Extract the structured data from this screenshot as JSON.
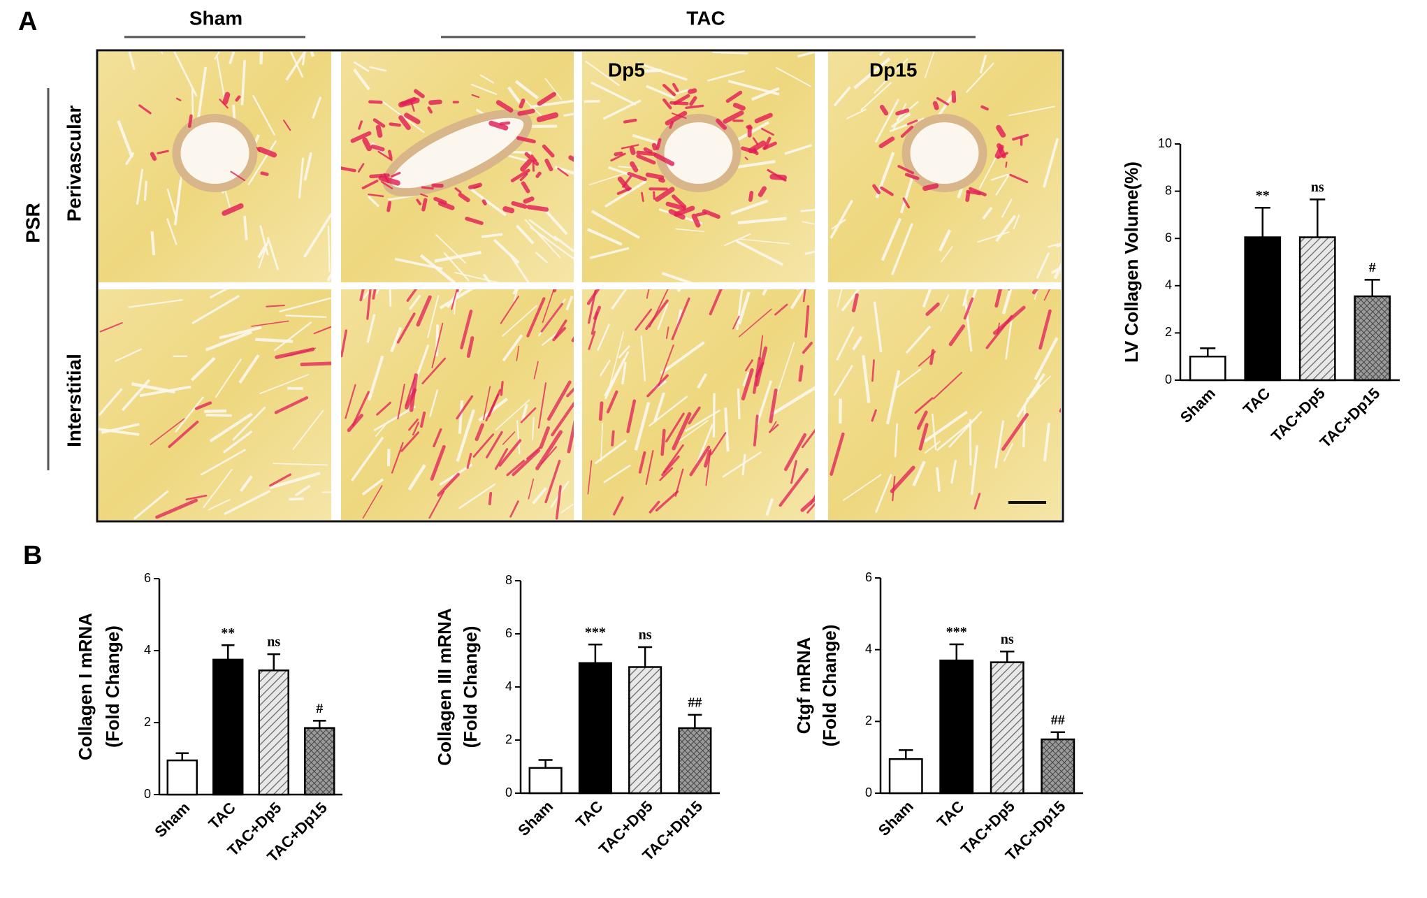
{
  "figure": {
    "panel_labels": [
      "A",
      "B"
    ],
    "group_labels": {
      "sham": "Sham",
      "tac": "TAC"
    },
    "image_labels": {
      "dp5": "Dp5",
      "dp15": "Dp15"
    },
    "stain": "PSR",
    "row_labels": [
      "Perivascular",
      "Interstitial"
    ]
  },
  "chart_data": [
    {
      "type": "bar",
      "ylabel": [
        "LV Collagen Volume(%)"
      ],
      "categories": [
        "Sham",
        "TAC",
        "TAC+Dp5",
        "TAC+Dp15"
      ],
      "values": [
        1.0,
        6.05,
        6.05,
        3.55
      ],
      "errors": [
        0.35,
        1.25,
        1.6,
        0.7
      ],
      "annotations": [
        null,
        "**",
        "ns",
        "#"
      ],
      "fills": [
        "white",
        "black",
        "hatch",
        "crosshatch"
      ],
      "ylim": [
        0,
        10
      ],
      "yticks": [
        0,
        2,
        4,
        6,
        8,
        10
      ]
    },
    {
      "type": "bar",
      "ylabel": [
        "Collagen I mRNA",
        "(Fold Change)"
      ],
      "categories": [
        "Sham",
        "TAC",
        "TAC+Dp5",
        "TAC+Dp15"
      ],
      "values": [
        0.95,
        3.75,
        3.45,
        1.85
      ],
      "errors": [
        0.2,
        0.4,
        0.45,
        0.2
      ],
      "annotations": [
        null,
        "**",
        "ns",
        "#"
      ],
      "fills": [
        "white",
        "black",
        "hatch",
        "crosshatch"
      ],
      "ylim": [
        0,
        6
      ],
      "yticks": [
        0,
        2,
        4,
        6
      ]
    },
    {
      "type": "bar",
      "ylabel": [
        "Collagen III mRNA",
        "(Fold Change)"
      ],
      "categories": [
        "Sham",
        "TAC",
        "TAC+Dp5",
        "TAC+Dp15"
      ],
      "values": [
        0.95,
        4.9,
        4.75,
        2.45
      ],
      "errors": [
        0.3,
        0.7,
        0.75,
        0.5
      ],
      "annotations": [
        null,
        "***",
        "ns",
        "##"
      ],
      "fills": [
        "white",
        "black",
        "hatch",
        "crosshatch"
      ],
      "ylim": [
        0,
        8
      ],
      "yticks": [
        0,
        2,
        4,
        6,
        8
      ]
    },
    {
      "type": "bar",
      "ylabel": [
        "Ctgf  mRNA",
        "(Fold Change)"
      ],
      "categories": [
        "Sham",
        "TAC",
        "TAC+Dp5",
        "TAC+Dp15"
      ],
      "values": [
        0.95,
        3.7,
        3.65,
        1.5
      ],
      "errors": [
        0.25,
        0.45,
        0.3,
        0.2
      ],
      "annotations": [
        null,
        "***",
        "ns",
        "##"
      ],
      "fills": [
        "white",
        "black",
        "hatch",
        "crosshatch"
      ],
      "ylim": [
        0,
        6
      ],
      "yticks": [
        0,
        2,
        4,
        6
      ]
    }
  ]
}
